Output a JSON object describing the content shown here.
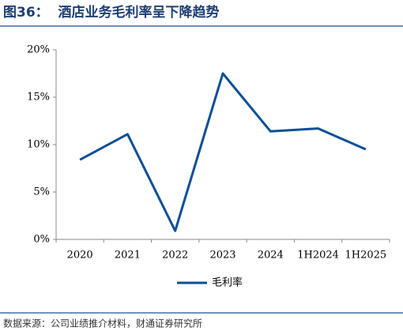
{
  "chart_data": {
    "type": "line",
    "title": "图36：  酒店业务毛利率呈下降趋势",
    "source": "数据来源：公司业绩推介材料，财通证券研究所",
    "categories": [
      "2020",
      "2021",
      "2022",
      "2023",
      "2024",
      "1H2024",
      "1H2025"
    ],
    "series": [
      {
        "name": "毛利率",
        "color": "#0b4f96",
        "values": [
          8.4,
          11.1,
          0.9,
          17.5,
          11.4,
          11.7,
          9.5
        ]
      }
    ],
    "ylim": [
      0,
      20
    ],
    "yticks": [
      {
        "value": 0,
        "label": "0%"
      },
      {
        "value": 5,
        "label": "5%"
      },
      {
        "value": 10,
        "label": "10%"
      },
      {
        "value": 15,
        "label": "15%"
      },
      {
        "value": 20,
        "label": "20%"
      }
    ],
    "legend": "bottom"
  }
}
